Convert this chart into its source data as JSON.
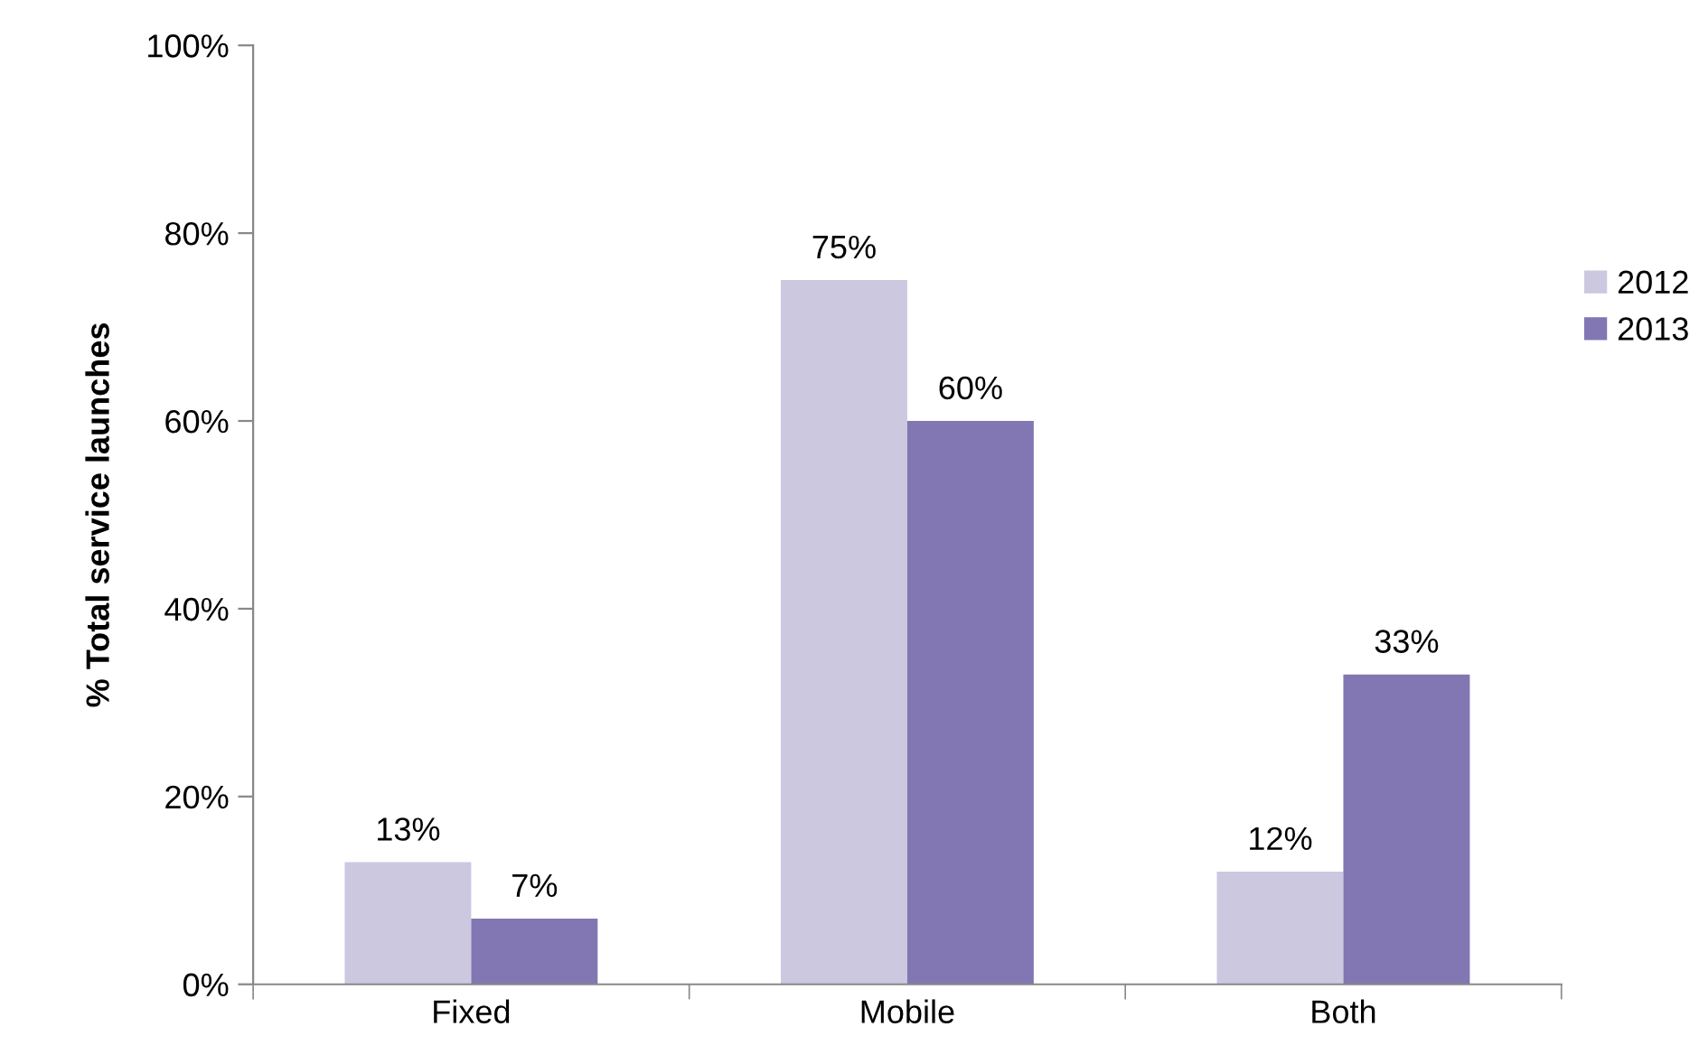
{
  "chart_data": {
    "type": "bar",
    "ylabel": "% Total service launches",
    "categories": [
      "Fixed",
      "Mobile",
      "Both"
    ],
    "series": [
      {
        "name": "2012",
        "color": "#ccc8e0",
        "values": [
          13,
          75,
          12
        ],
        "value_labels": [
          "13%",
          "75%",
          "12%"
        ]
      },
      {
        "name": "2013",
        "color": "#8277b3",
        "values": [
          7,
          60,
          33
        ],
        "value_labels": [
          "7%",
          "60%",
          "33%"
        ]
      }
    ],
    "ylim": [
      0,
      100
    ],
    "yticks": [
      {
        "value": 0,
        "label": "0%"
      },
      {
        "value": 20,
        "label": "20%"
      },
      {
        "value": 40,
        "label": "40%"
      },
      {
        "value": 60,
        "label": "60%"
      },
      {
        "value": 80,
        "label": "80%"
      },
      {
        "value": 100,
        "label": "100%"
      }
    ],
    "grid": false,
    "legend": "right"
  }
}
